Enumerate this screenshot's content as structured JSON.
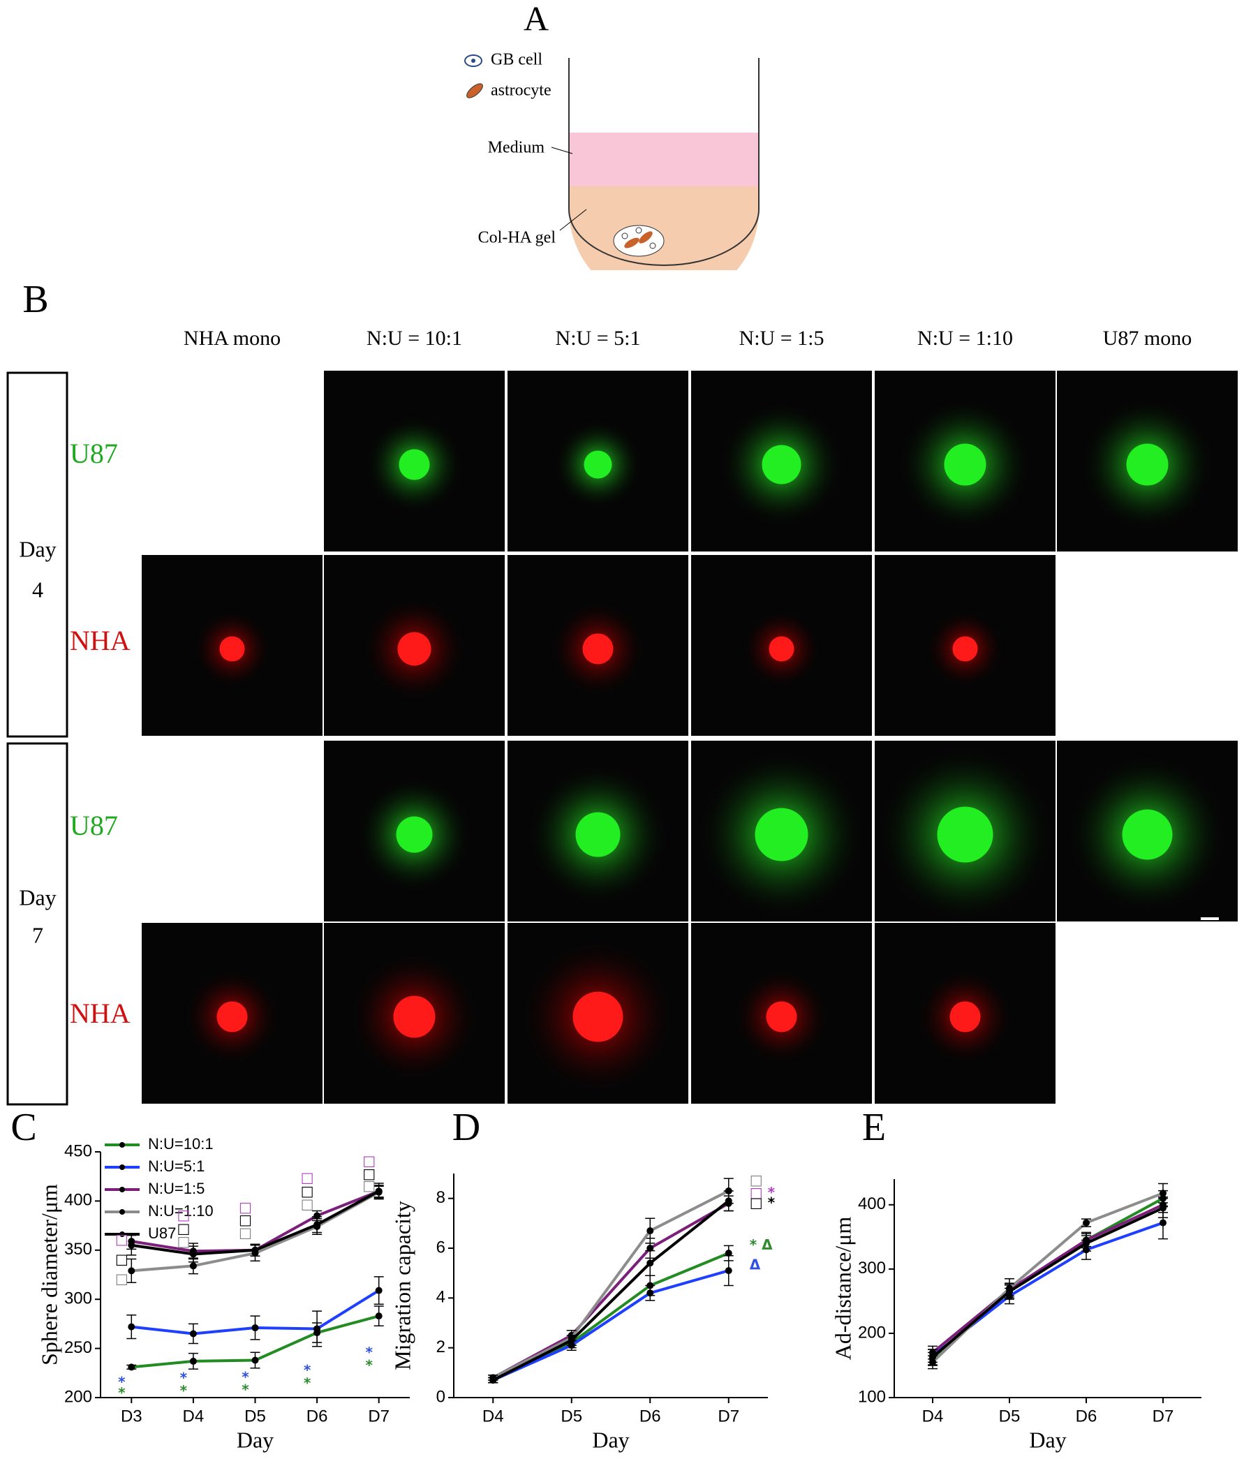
{
  "panel_a": {
    "label": "A",
    "legend": [
      "GB cell",
      "astrocyte"
    ],
    "annotations": [
      "Medium",
      "Col-HA gel"
    ]
  },
  "panel_b": {
    "label": "B",
    "columns": [
      "NHA mono",
      "N:U = 10:1",
      "N:U = 5:1",
      "N:U = 1:5",
      "N:U = 1:10",
      "U87 mono"
    ],
    "days": [
      {
        "label": "Day",
        "number": "4"
      },
      {
        "label": "Day",
        "number": "7"
      }
    ],
    "rows": [
      "U87",
      "NHA",
      "U87",
      "NHA"
    ]
  },
  "chart_data": [
    {
      "type": "line",
      "panel": "C",
      "ylabel": "Sphere diameter/μm",
      "xlabel": "Day",
      "categories": [
        "D3",
        "D4",
        "D5",
        "D6",
        "D7"
      ],
      "ylim": [
        200,
        450
      ],
      "yticks": [
        200,
        250,
        300,
        350,
        400,
        450
      ],
      "legend": "upper left",
      "series": [
        {
          "name": "N:U=10:1",
          "color": "#228b22",
          "values": [
            231,
            237,
            238,
            266,
            283
          ],
          "errors": [
            2,
            8,
            8,
            10,
            10
          ]
        },
        {
          "name": "N:U=5:1",
          "color": "#1f3fff",
          "values": [
            272,
            265,
            271,
            270,
            309
          ],
          "errors": [
            12,
            10,
            12,
            18,
            14
          ]
        },
        {
          "name": "N:U=1:5",
          "color": "#7b1f7b",
          "values": [
            359,
            349,
            350,
            385,
            410
          ],
          "errors": [
            8,
            8,
            6,
            5,
            8
          ]
        },
        {
          "name": "N:U=1:10",
          "color": "#8c8c8c",
          "values": [
            329,
            334,
            347,
            374,
            409
          ],
          "errors": [
            12,
            8,
            8,
            8,
            6
          ]
        },
        {
          "name": "U87",
          "color": "#000000",
          "values": [
            355,
            346,
            350,
            376,
            410
          ],
          "errors": [
            10,
            8,
            6,
            8,
            6
          ]
        }
      ],
      "annotations": [
        {
          "text": "□",
          "color": "#b040c0",
          "x": "D3",
          "y": 360
        },
        {
          "text": "□",
          "color": "#000000",
          "x": "D3",
          "y": 340
        },
        {
          "text": "□",
          "color": "#808080",
          "x": "D3",
          "y": 320
        },
        {
          "text": "*",
          "color": "#3050e0",
          "x": "D3",
          "y": 215
        },
        {
          "text": "*",
          "color": "#2e8b2e",
          "x": "D3",
          "y": 204
        },
        {
          "text": "□",
          "color": "#b040c0",
          "x": "D4",
          "y": 385
        },
        {
          "text": "□",
          "color": "#000000",
          "x": "D4",
          "y": 371
        },
        {
          "text": "□",
          "color": "#808080",
          "x": "D4",
          "y": 358
        },
        {
          "text": "*",
          "color": "#3050e0",
          "x": "D4",
          "y": 219
        },
        {
          "text": "*",
          "color": "#2e8b2e",
          "x": "D4",
          "y": 206
        },
        {
          "text": "□",
          "color": "#b040c0",
          "x": "D5",
          "y": 393
        },
        {
          "text": "□",
          "color": "#000000",
          "x": "D5",
          "y": 380
        },
        {
          "text": "□",
          "color": "#808080",
          "x": "D5",
          "y": 367
        },
        {
          "text": "*",
          "color": "#3050e0",
          "x": "D5",
          "y": 220
        },
        {
          "text": "*",
          "color": "#2e8b2e",
          "x": "D5",
          "y": 207
        },
        {
          "text": "□",
          "color": "#b040c0",
          "x": "D6",
          "y": 423
        },
        {
          "text": "□",
          "color": "#000000",
          "x": "D6",
          "y": 409
        },
        {
          "text": "□",
          "color": "#808080",
          "x": "D6",
          "y": 396
        },
        {
          "text": "*",
          "color": "#3050e0",
          "x": "D6",
          "y": 227
        },
        {
          "text": "*",
          "color": "#2e8b2e",
          "x": "D6",
          "y": 214
        },
        {
          "text": "□",
          "color": "#b040c0",
          "x": "D7",
          "y": 440
        },
        {
          "text": "□",
          "color": "#000000",
          "x": "D7",
          "y": 427
        },
        {
          "text": "□",
          "color": "#808080",
          "x": "D7",
          "y": 415
        },
        {
          "text": "*",
          "color": "#3050e0",
          "x": "D7",
          "y": 245
        },
        {
          "text": "*",
          "color": "#2e8b2e",
          "x": "D7",
          "y": 232
        }
      ]
    },
    {
      "type": "line",
      "panel": "D",
      "ylabel": "Migration capacity",
      "xlabel": "Day",
      "categories": [
        "D4",
        "D5",
        "D6",
        "D7"
      ],
      "ylim": [
        0,
        9
      ],
      "yticks": [
        0,
        2,
        4,
        6,
        8
      ],
      "series": [
        {
          "color": "#228b22",
          "values": [
            0.7,
            2.2,
            4.5,
            5.8
          ],
          "errors": [
            0.1,
            0.2,
            0.4,
            0.3
          ]
        },
        {
          "color": "#1f3fff",
          "values": [
            0.7,
            2.1,
            4.2,
            5.1
          ],
          "errors": [
            0.1,
            0.2,
            0.3,
            0.6
          ]
        },
        {
          "color": "#7b1f7b",
          "values": [
            0.8,
            2.5,
            6.0,
            7.8
          ],
          "errors": [
            0.1,
            0.2,
            0.4,
            0.3
          ]
        },
        {
          "color": "#8c8c8c",
          "values": [
            0.8,
            2.4,
            6.7,
            8.3
          ],
          "errors": [
            0.1,
            0.3,
            0.5,
            0.5
          ]
        },
        {
          "color": "#000000",
          "values": [
            0.7,
            2.3,
            5.4,
            7.9
          ],
          "errors": [
            0.1,
            0.2,
            0.5,
            0.4
          ]
        }
      ],
      "annotations": [
        {
          "text": "□",
          "color": "#808080",
          "x": "D7",
          "y": 8.7
        },
        {
          "text": "□ *",
          "color": "#b040c0",
          "x": "D7",
          "y": 8.2
        },
        {
          "text": "□ *",
          "color": "#000000",
          "x": "D7",
          "y": 7.8
        },
        {
          "text": "* Δ",
          "color": "#2e8b2e",
          "x": "D7",
          "y": 6.1
        },
        {
          "text": "Δ",
          "color": "#3050e0",
          "x": "D7",
          "y": 5.3
        }
      ]
    },
    {
      "type": "line",
      "panel": "E",
      "ylabel": "Ad-distance/μm",
      "xlabel": "Day",
      "categories": [
        "D4",
        "D5",
        "D6",
        "D7"
      ],
      "ylim": [
        100,
        440
      ],
      "yticks": [
        100,
        200,
        300,
        400
      ],
      "series": [
        {
          "color": "#228b22",
          "values": [
            160,
            265,
            345,
            410
          ],
          "errors": [
            10,
            10,
            12,
            12
          ]
        },
        {
          "color": "#1f3fff",
          "values": [
            165,
            258,
            330,
            372
          ],
          "errors": [
            10,
            12,
            15,
            25
          ]
        },
        {
          "color": "#7b1f7b",
          "values": [
            170,
            268,
            345,
            400
          ],
          "errors": [
            10,
            10,
            10,
            12
          ]
        },
        {
          "color": "#8c8c8c",
          "values": [
            155,
            270,
            372,
            418
          ],
          "errors": [
            10,
            15,
            6,
            15
          ]
        },
        {
          "color": "#000000",
          "values": [
            163,
            265,
            340,
            395
          ],
          "errors": [
            12,
            12,
            12,
            15
          ]
        }
      ]
    }
  ]
}
